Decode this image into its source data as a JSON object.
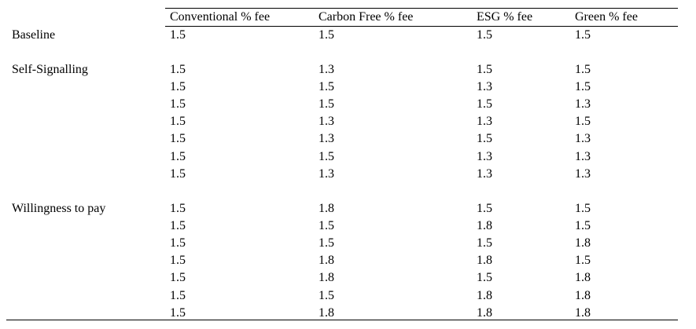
{
  "table": {
    "headers": [
      "",
      "Conventional % fee",
      "Carbon Free % fee",
      "ESG % fee",
      "Green % fee"
    ],
    "groups": [
      {
        "label": "Baseline",
        "rows": [
          [
            "1.5",
            "1.5",
            "1.5",
            "1.5"
          ]
        ]
      },
      {
        "label": "Self-Signalling",
        "rows": [
          [
            "1.5",
            "1.3",
            "1.5",
            "1.5"
          ],
          [
            "1.5",
            "1.5",
            "1.3",
            "1.5"
          ],
          [
            "1.5",
            "1.5",
            "1.5",
            "1.3"
          ],
          [
            "1.5",
            "1.3",
            "1.3",
            "1.5"
          ],
          [
            "1.5",
            "1.3",
            "1.5",
            "1.3"
          ],
          [
            "1.5",
            "1.5",
            "1.3",
            "1.3"
          ],
          [
            "1.5",
            "1.3",
            "1.3",
            "1.3"
          ]
        ]
      },
      {
        "label": "Willingness to pay",
        "rows": [
          [
            "1.5",
            "1.8",
            "1.5",
            "1.5"
          ],
          [
            "1.5",
            "1.5",
            "1.8",
            "1.5"
          ],
          [
            "1.5",
            "1.5",
            "1.5",
            "1.8"
          ],
          [
            "1.5",
            "1.8",
            "1.8",
            "1.5"
          ],
          [
            "1.5",
            "1.8",
            "1.5",
            "1.8"
          ],
          [
            "1.5",
            "1.5",
            "1.8",
            "1.8"
          ],
          [
            "1.5",
            "1.8",
            "1.8",
            "1.8"
          ]
        ]
      }
    ]
  }
}
